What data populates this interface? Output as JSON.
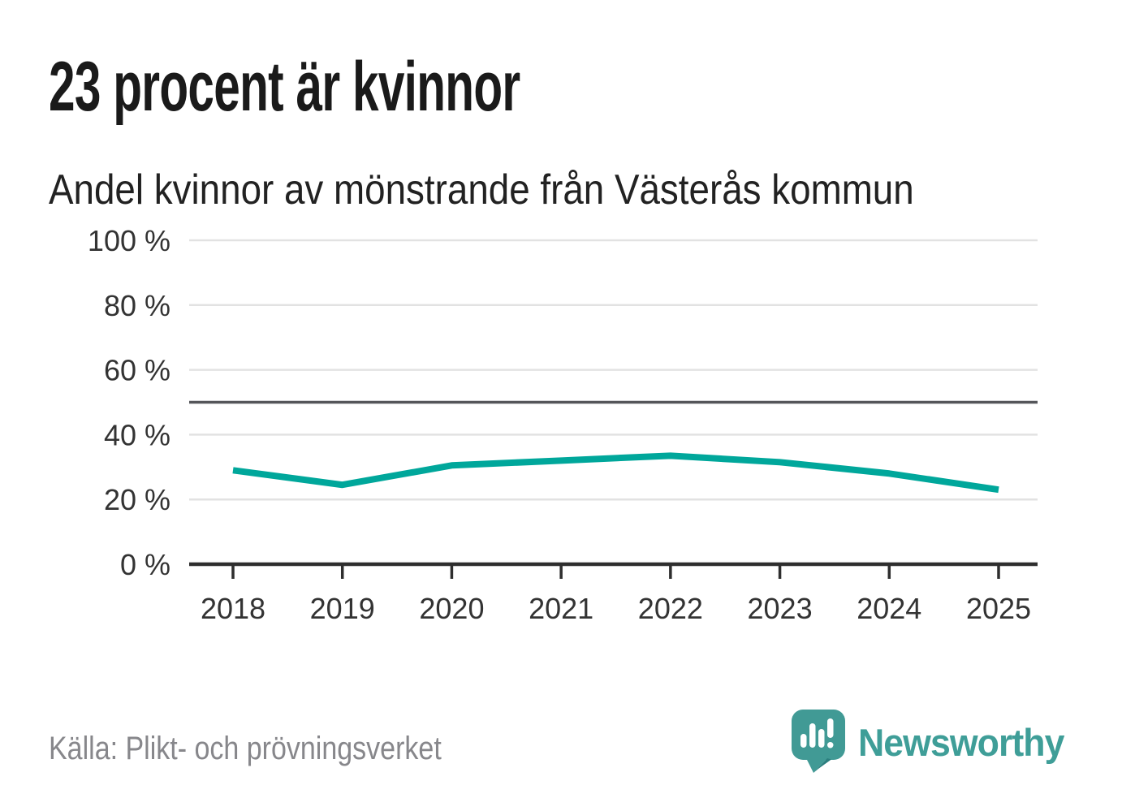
{
  "header": {
    "title": "23 procent är kvinnor",
    "subtitle": "Andel kvinnor av mönstrande från Västerås kommun"
  },
  "chart_data": {
    "type": "line",
    "title": "23 procent är kvinnor",
    "subtitle": "Andel kvinnor av mönstrande från Västerås kommun",
    "x": [
      "2018",
      "2019",
      "2020",
      "2021",
      "2022",
      "2023",
      "2024",
      "2025"
    ],
    "series": [
      {
        "name": "Andel kvinnor av mönstrande",
        "values": [
          29,
          24.5,
          30.5,
          32,
          33.5,
          31.5,
          28,
          23
        ]
      }
    ],
    "ylim": [
      0,
      100
    ],
    "ytick_values": [
      0,
      20,
      40,
      60,
      80,
      100
    ],
    "ytick_labels": [
      "0 %",
      "20 %",
      "40 %",
      "60 %",
      "80 %",
      "100 %"
    ],
    "gridline_values": [
      20,
      40,
      60,
      80,
      100
    ],
    "reference_line_value": 50,
    "grid": true,
    "legend": "none",
    "colors": {
      "line": "#00a79b",
      "grid": "#e2e2e2",
      "reference_line": "#55565a",
      "axis": "#2e2e2e",
      "tick_label": "#333333"
    }
  },
  "footer": {
    "source": "Källa: Plikt- och prövningsverket",
    "brand": "Newsworthy",
    "brand_color": "#3f9e98",
    "logo_dark_accent": "#2c7f7f"
  }
}
